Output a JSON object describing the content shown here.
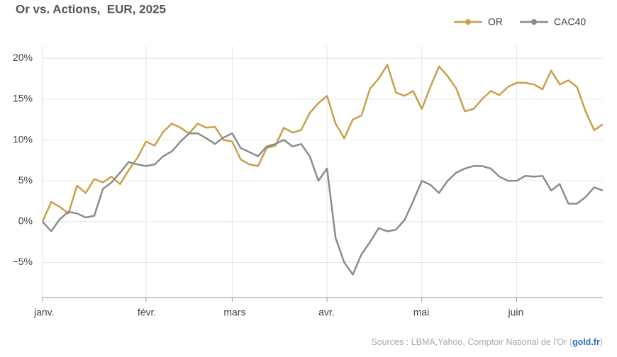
{
  "chart_data": {
    "type": "line",
    "title": "Or vs. Actions,  EUR, 2025",
    "source_prefix": "Sources : LBMA,Yahoo, Comptoir National de l'Or (",
    "source_link": "gold.fr",
    "source_suffix": ")",
    "legend": "top-right",
    "grid": true,
    "categories": [
      "janv.",
      null,
      null,
      null,
      null,
      null,
      null,
      null,
      null,
      null,
      null,
      null,
      "févr.",
      null,
      null,
      null,
      null,
      null,
      null,
      null,
      null,
      null,
      "mars",
      null,
      null,
      null,
      null,
      null,
      null,
      null,
      null,
      null,
      null,
      "avr.",
      null,
      null,
      null,
      null,
      null,
      null,
      null,
      null,
      null,
      null,
      "mai",
      null,
      null,
      null,
      null,
      null,
      null,
      null,
      null,
      null,
      null,
      "juin",
      null,
      null,
      null,
      null,
      null,
      null,
      null,
      null,
      null,
      null
    ],
    "ylim": [
      -9.3,
      21.5
    ],
    "yticks": [
      {
        "value": -5,
        "label": "−5%"
      },
      {
        "value": 0,
        "label": "0%"
      },
      {
        "value": 5,
        "label": "5%"
      },
      {
        "value": 10,
        "label": "10%"
      },
      {
        "value": 15,
        "label": "15%"
      },
      {
        "value": 20,
        "label": "20%"
      }
    ],
    "series": [
      {
        "name": "OR",
        "color": "#c9a04a",
        "values": [
          0,
          2.4,
          1.8,
          1.0,
          4.4,
          3.5,
          5.2,
          4.8,
          5.5,
          4.6,
          6.3,
          7.8,
          9.8,
          9.3,
          11.0,
          12.0,
          11.5,
          10.8,
          12.0,
          11.5,
          11.6,
          10.0,
          9.8,
          7.6,
          7.0,
          6.8,
          9.0,
          9.3,
          11.5,
          10.9,
          11.2,
          13.3,
          14.5,
          15.4,
          12.0,
          10.2,
          12.5,
          13.0,
          16.3,
          17.5,
          19.2,
          15.8,
          15.4,
          16.0,
          13.8,
          16.5,
          19.0,
          17.8,
          16.3,
          13.5,
          13.8,
          15.0,
          16.0,
          15.5,
          16.5,
          17.0,
          17.0,
          16.8,
          16.2,
          18.5,
          16.8,
          17.3,
          16.5,
          13.5,
          11.2,
          11.9
        ]
      },
      {
        "name": "CAC40",
        "color": "#8c8c8c",
        "values": [
          0,
          -1.2,
          0.3,
          1.2,
          1.0,
          0.5,
          0.7,
          4.0,
          4.8,
          6.0,
          7.3,
          7.0,
          6.8,
          7.0,
          8.0,
          8.6,
          9.8,
          10.8,
          10.8,
          10.2,
          9.5,
          10.3,
          10.8,
          9.0,
          8.5,
          8.0,
          9.2,
          9.5,
          10.0,
          9.2,
          9.5,
          8.0,
          5.0,
          6.5,
          -2.0,
          -5.0,
          -6.5,
          -4.0,
          -2.5,
          -0.8,
          -1.2,
          -1.0,
          0.2,
          2.5,
          5.0,
          4.5,
          3.5,
          5.0,
          6.0,
          6.5,
          6.8,
          6.8,
          6.5,
          5.5,
          5.0,
          5.0,
          5.6,
          5.5,
          5.6,
          3.8,
          4.6,
          2.2,
          2.2,
          3.0,
          4.2,
          3.8
        ]
      }
    ]
  }
}
